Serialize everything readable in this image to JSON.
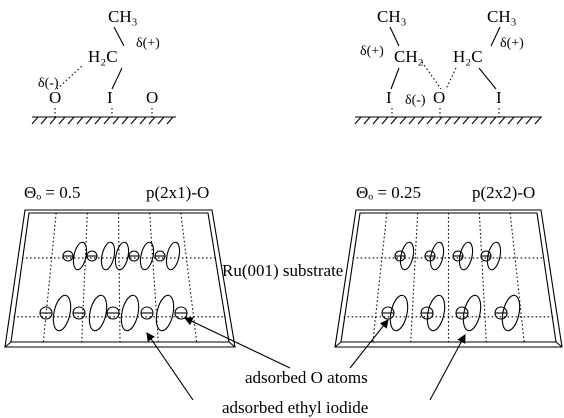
{
  "top_left": {
    "ch3": "CH₃",
    "h2c": "H₂C",
    "delta_plus": "δ(+)",
    "delta_minus": "δ(-)",
    "o_left": "O",
    "iodine": "I",
    "o_right": "O"
  },
  "top_right": {
    "ch3_left": "CH₃",
    "ch3_right": "CH₃",
    "delta_plus_left": "δ(+)",
    "ch2": "CH₂",
    "h2c": "H₂C",
    "delta_plus_right": "δ(+)",
    "iodine_left": "I",
    "delta_minus": "δ(-)",
    "oxygen": "O",
    "iodine_right": "I"
  },
  "panels": [
    {
      "coverage": "Θₒ = 0.5",
      "structure": "p(2x1)-O"
    },
    {
      "coverage": "Θₒ = 0.25",
      "structure": "p(2x2)-O"
    }
  ],
  "labels": {
    "substrate": "Ru(001) substrate",
    "o_atoms": "adsorbed O atoms",
    "ethyl_iodide": "adsorbed ethyl iodide"
  }
}
